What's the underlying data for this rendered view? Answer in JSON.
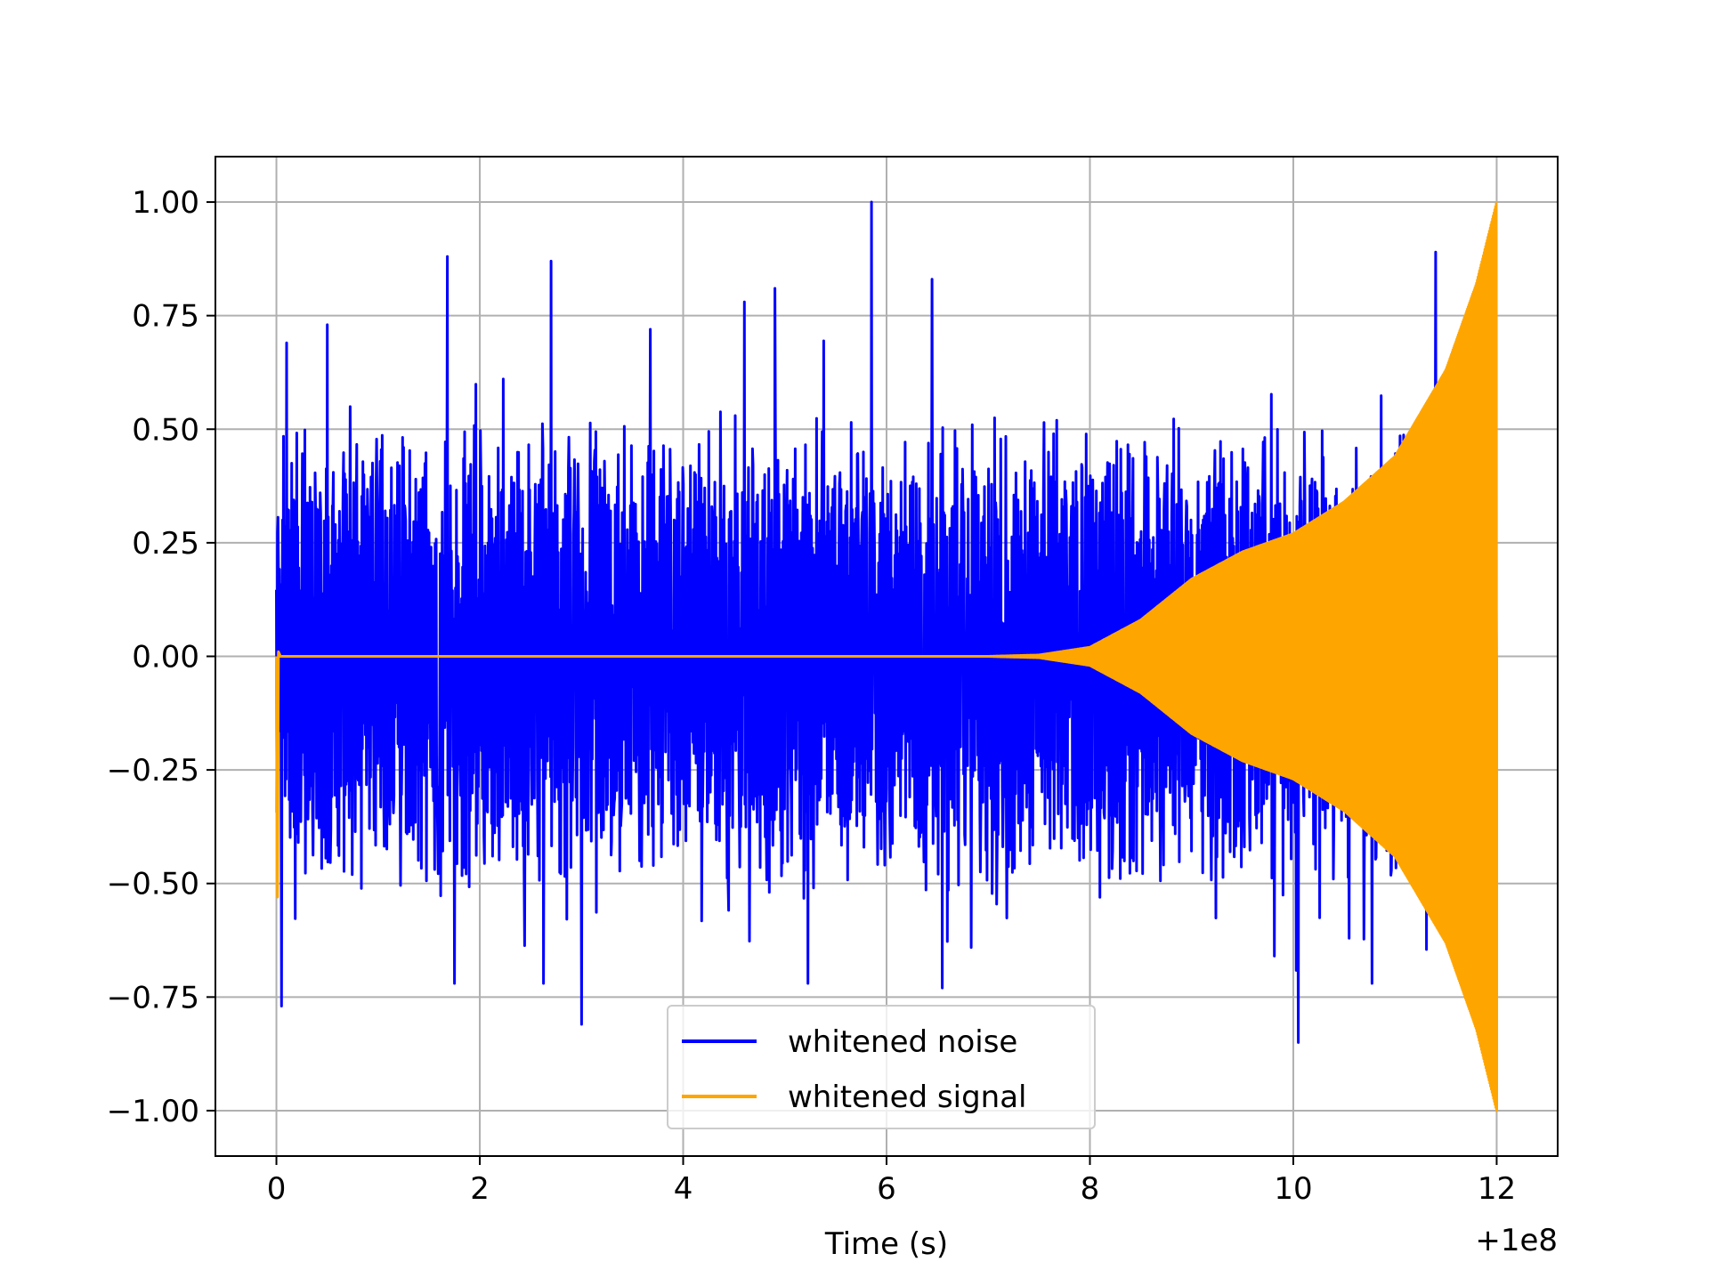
{
  "chart_data": {
    "type": "line",
    "title": "",
    "xlabel": "Time (s)",
    "ylabel": "",
    "x_offset_label": "+1e8",
    "xlim": [
      -0.6,
      12.6
    ],
    "ylim": [
      -1.1,
      1.1
    ],
    "grid": true,
    "legend_position": "bottom-center",
    "xticks": [
      0,
      2,
      4,
      6,
      8,
      10,
      12
    ],
    "xtick_labels": [
      "0",
      "2",
      "4",
      "6",
      "8",
      "10",
      "12"
    ],
    "yticks": [
      1.0,
      0.75,
      0.5,
      0.25,
      0.0,
      -0.25,
      -0.5,
      -0.75,
      -1.0
    ],
    "ytick_labels": [
      "1.00",
      "0.75",
      "0.50",
      "0.25",
      "0.00",
      "−0.25",
      "−0.50",
      "−0.75",
      "−1.00"
    ],
    "series": [
      {
        "name": "whitened noise",
        "color": "#0000ff",
        "x_range": [
          0,
          12
        ],
        "typical_band": [
          -0.4,
          0.4
        ],
        "peaks": [
          {
            "x": 0.1,
            "y": 0.69
          },
          {
            "x": 0.5,
            "y": 0.73
          },
          {
            "x": 1.68,
            "y": 0.88
          },
          {
            "x": 2.7,
            "y": 0.87
          },
          {
            "x": 4.6,
            "y": 0.78
          },
          {
            "x": 4.9,
            "y": 0.81
          },
          {
            "x": 5.85,
            "y": 1.0
          },
          {
            "x": 6.45,
            "y": 0.83
          },
          {
            "x": 11.4,
            "y": 0.89
          },
          {
            "x": 0.05,
            "y": -0.77
          },
          {
            "x": 3.0,
            "y": -0.81
          },
          {
            "x": 6.55,
            "y": -0.73
          },
          {
            "x": 10.05,
            "y": -0.85
          }
        ]
      },
      {
        "name": "whitened signal",
        "color": "#ffa500",
        "x_range": [
          0,
          12
        ],
        "initial_spike": {
          "x": 0.02,
          "y_min": -0.53,
          "y_max": 0.01
        },
        "envelope": [
          {
            "x": 0,
            "y": 0.0
          },
          {
            "x": 7.0,
            "y": 0.0
          },
          {
            "x": 7.5,
            "y": 0.003
          },
          {
            "x": 8.0,
            "y": 0.02
          },
          {
            "x": 8.5,
            "y": 0.08
          },
          {
            "x": 9.0,
            "y": 0.17
          },
          {
            "x": 9.5,
            "y": 0.23
          },
          {
            "x": 10.0,
            "y": 0.27
          },
          {
            "x": 10.5,
            "y": 0.34
          },
          {
            "x": 11.0,
            "y": 0.44
          },
          {
            "x": 11.5,
            "y": 0.63
          },
          {
            "x": 11.8,
            "y": 0.82
          },
          {
            "x": 12.0,
            "y": 1.0
          }
        ]
      }
    ]
  }
}
